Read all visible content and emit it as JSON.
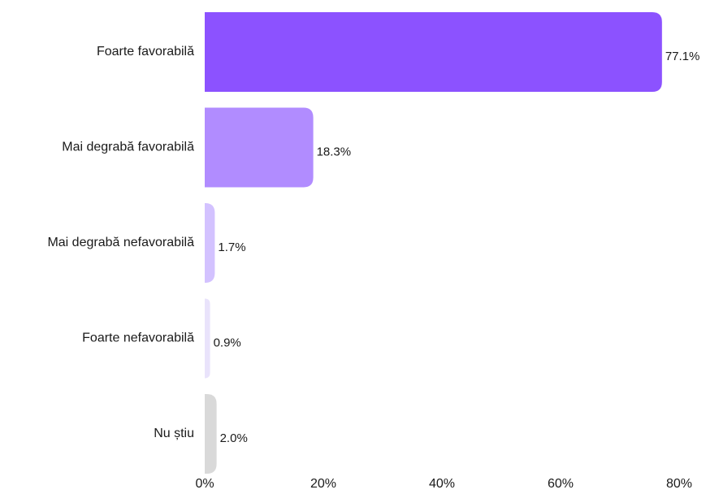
{
  "chart_data": {
    "type": "bar",
    "orientation": "horizontal",
    "categories": [
      "Foarte favorabilă",
      "Mai degrabă favorabilă",
      "Mai degrabă nefavorabilă",
      "Foarte nefavorabilă",
      "Nu știu"
    ],
    "values": [
      77.1,
      18.3,
      1.7,
      0.9,
      2.0
    ],
    "value_labels": [
      "77.1%",
      "18.3%",
      "1.7%",
      "0.9%",
      "2.0%"
    ],
    "colors": [
      "#8c52ff",
      "#b18cff",
      "#d3c2ff",
      "#e9e3fb",
      "#d9d9d9"
    ],
    "xlim": [
      0,
      80
    ],
    "x_ticks": [
      0,
      20,
      40,
      60,
      80
    ],
    "x_tick_labels": [
      "0%",
      "20%",
      "40%",
      "60%",
      "80%"
    ],
    "grid": false,
    "legend": "none"
  }
}
